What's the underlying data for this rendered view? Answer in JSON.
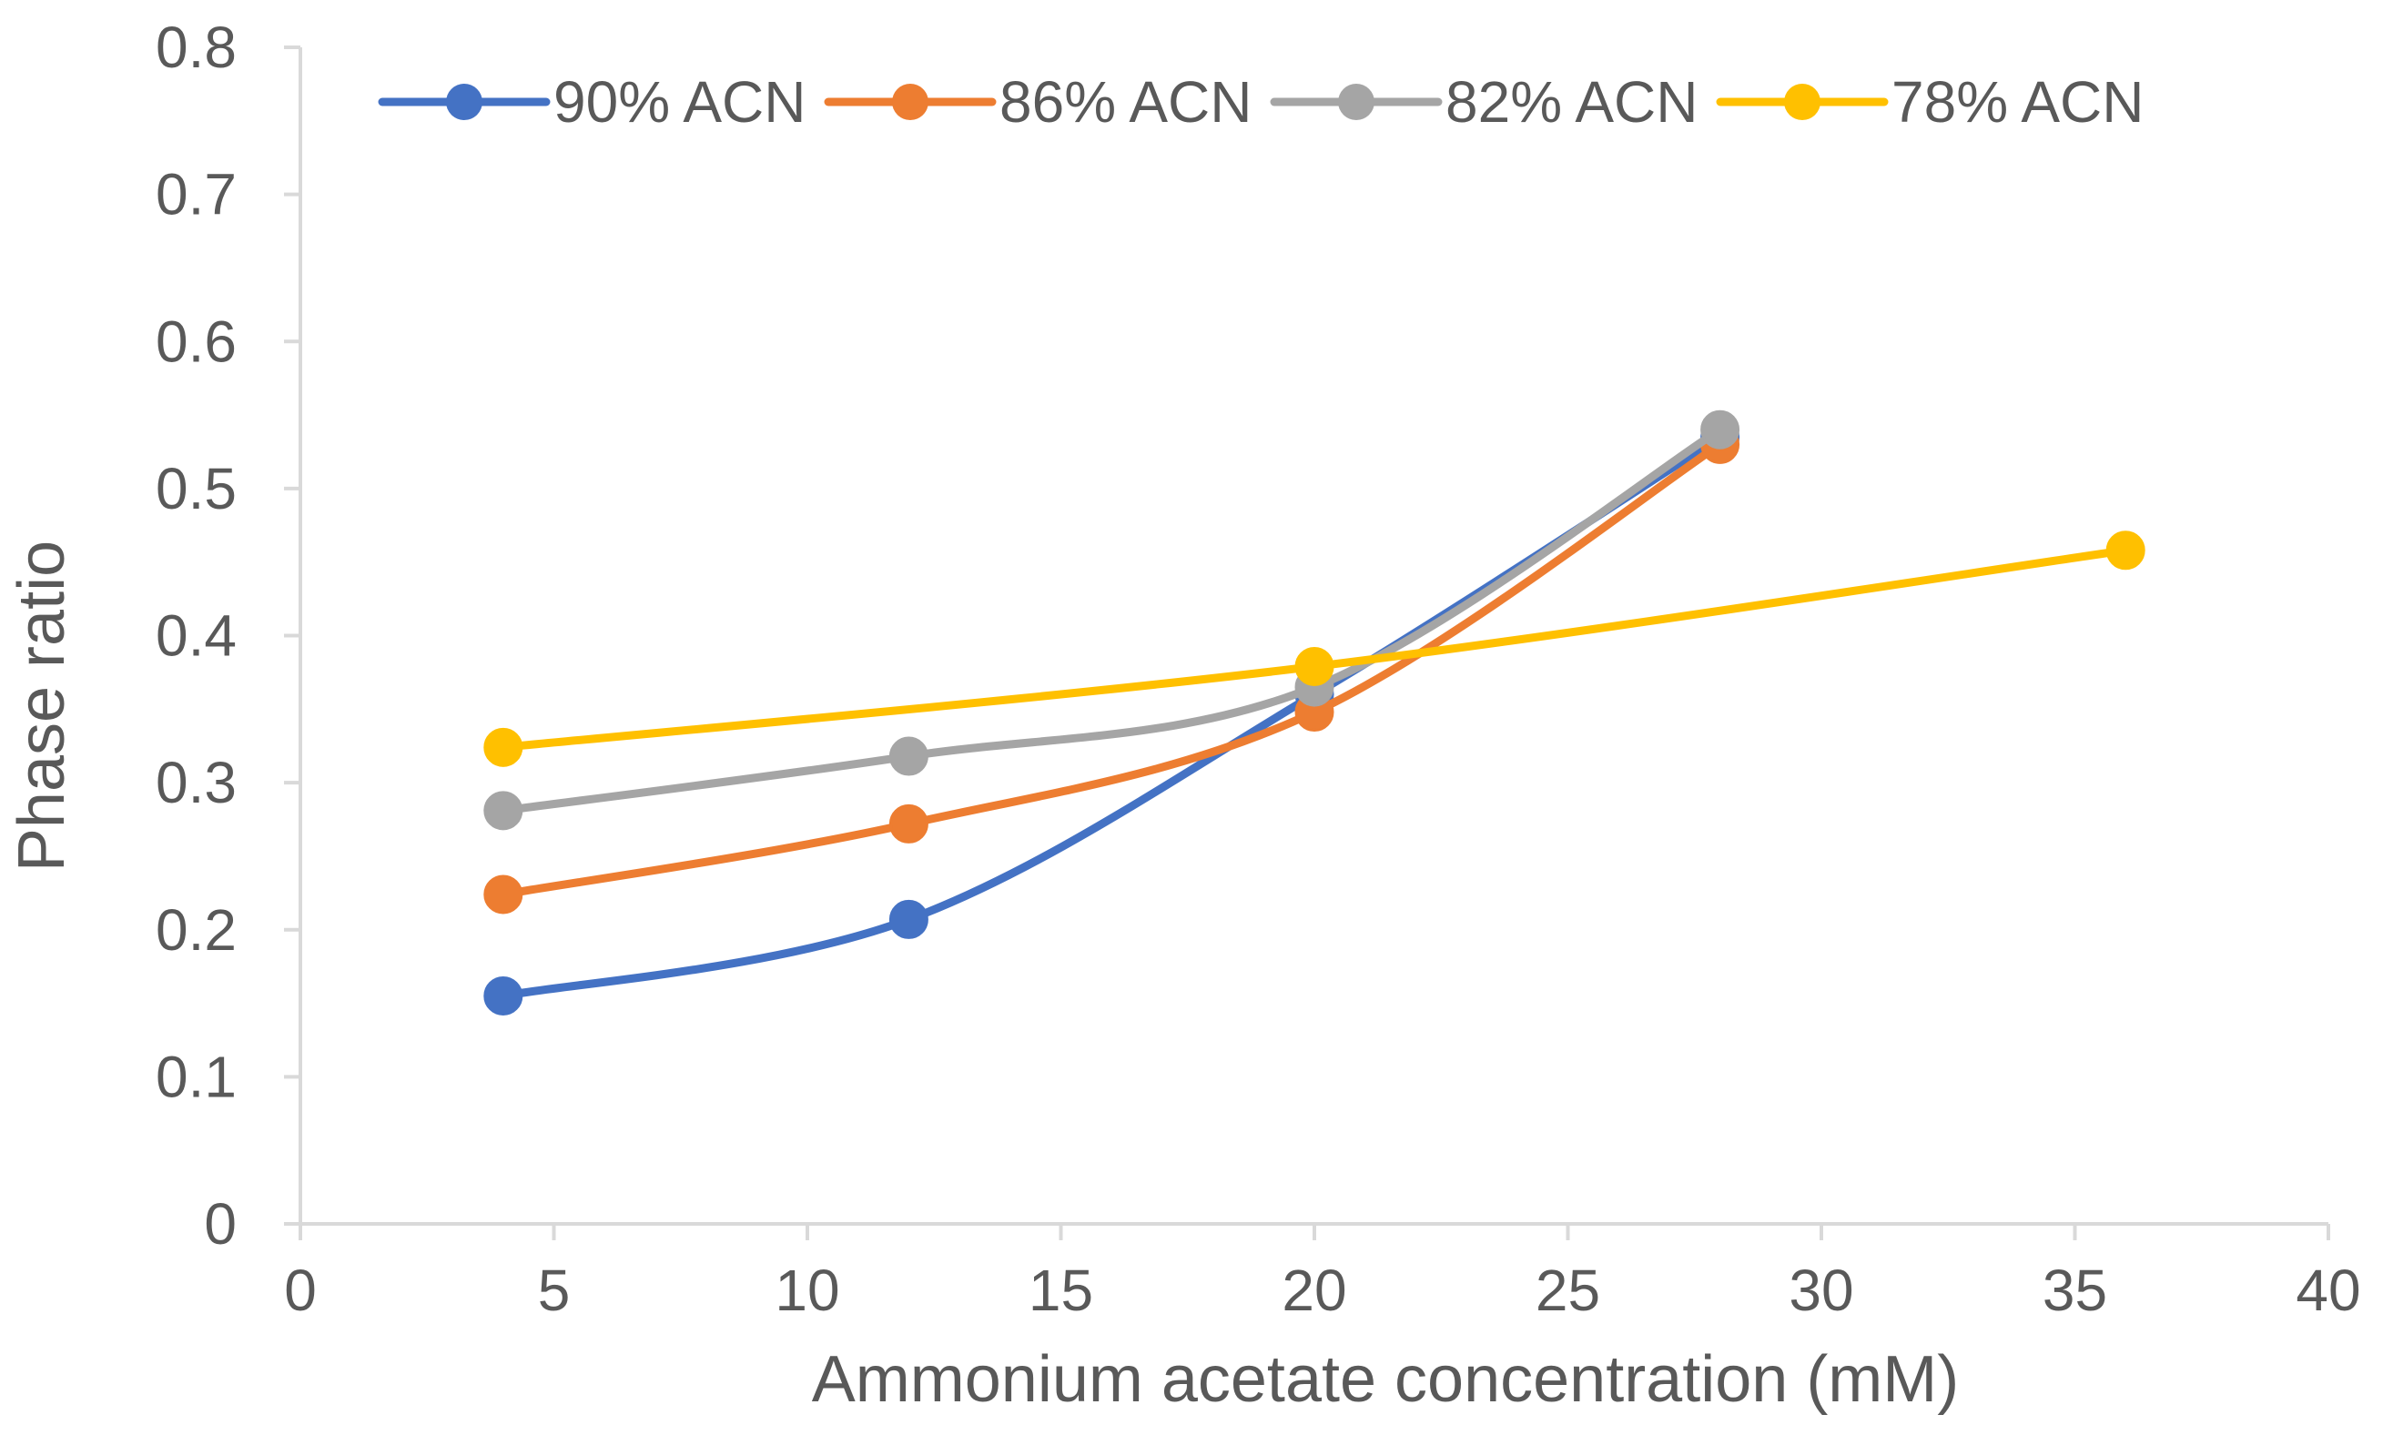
{
  "chart_data": {
    "type": "line",
    "title": "",
    "xlabel": "Ammonium acetate concentration (mM)",
    "ylabel": "Phase ratio",
    "xlim": [
      0,
      40
    ],
    "ylim": [
      0,
      0.8
    ],
    "xticks": [
      "0",
      "5",
      "10",
      "15",
      "20",
      "25",
      "30",
      "35",
      "40"
    ],
    "yticks": [
      "0",
      "0.1",
      "0.2",
      "0.3",
      "0.4",
      "0.5",
      "0.6",
      "0.7",
      "0.8"
    ],
    "grid": false,
    "legend": "top",
    "smooth": true,
    "series": [
      {
        "name": "90% ACN",
        "color": "#4472C4",
        "x": [
          4,
          12,
          20,
          28
        ],
        "y": [
          0.155,
          0.207,
          0.36,
          0.535
        ]
      },
      {
        "name": "86% ACN",
        "color": "#ED7D31",
        "x": [
          4,
          12,
          20,
          28
        ],
        "y": [
          0.224,
          0.272,
          0.348,
          0.53
        ]
      },
      {
        "name": "82% ACN",
        "color": "#A5A5A5",
        "x": [
          4,
          12,
          20,
          28
        ],
        "y": [
          0.281,
          0.318,
          0.365,
          0.54
        ]
      },
      {
        "name": "78% ACN",
        "color": "#FFC000",
        "x": [
          4,
          20,
          36
        ],
        "y": [
          0.324,
          0.379,
          0.458
        ]
      }
    ]
  }
}
